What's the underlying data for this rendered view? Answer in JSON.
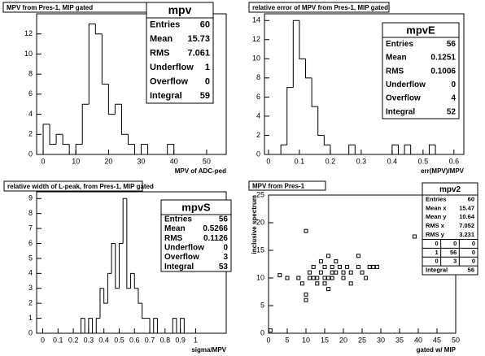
{
  "chart_data": [
    {
      "type": "histogram",
      "title": "MPV from Pres-1, MIP gated",
      "x_label": "MPV of ADC-ped",
      "bins": [
        0,
        2,
        4,
        6,
        8,
        10,
        12,
        14,
        16,
        18,
        20,
        22,
        24,
        26,
        28,
        30,
        32,
        34,
        36,
        38,
        40
      ],
      "values": [
        3,
        1,
        2,
        1,
        0,
        1,
        5,
        13,
        12,
        7,
        4,
        5,
        2,
        1,
        0,
        1,
        0,
        0,
        0,
        1
      ],
      "xlim": [
        -2,
        56
      ],
      "ylim": [
        0,
        14
      ],
      "xticks": [
        0,
        10,
        20,
        30,
        40,
        50
      ],
      "yticks": [
        0,
        2,
        4,
        6,
        8,
        10,
        12
      ],
      "color": "#000000",
      "stats": {
        "title": "mpv",
        "rows": [
          [
            "Entries",
            "60"
          ],
          [
            "Mean",
            "15.73"
          ],
          [
            "RMS",
            "7.061"
          ],
          [
            "Underflow",
            "1"
          ],
          [
            "Overflow",
            "0"
          ],
          [
            "Integral",
            "59"
          ]
        ]
      }
    },
    {
      "type": "histogram",
      "title": "relative error of MPV from Pres-1, MIP gated",
      "x_label": "err(MPV)/MPV",
      "bins": [
        0,
        0.02,
        0.04,
        0.06,
        0.08,
        0.1,
        0.12,
        0.14,
        0.16,
        0.18,
        0.2,
        0.22,
        0.24,
        0.26,
        0.28,
        0.3,
        0.32,
        0.34,
        0.36,
        0.38,
        0.4,
        0.42,
        0.44,
        0.46,
        0.48,
        0.5,
        0.52,
        0.54,
        0.56,
        0.58,
        0.6
      ],
      "values": [
        0,
        0,
        1,
        7,
        14,
        10,
        8,
        5,
        2,
        1,
        0,
        0,
        0,
        1,
        0,
        0,
        0,
        0,
        0,
        0,
        1,
        0,
        1,
        0,
        0,
        0,
        1,
        0,
        0,
        0
      ],
      "xlim": [
        -0.013,
        0.632
      ],
      "ylim": [
        0,
        14.7
      ],
      "xticks": [
        0,
        0.1,
        0.2,
        0.3,
        0.4,
        0.5,
        0.6
      ],
      "yticks": [
        0,
        2,
        4,
        6,
        8,
        10,
        12,
        14
      ],
      "color": "#000000",
      "stats": {
        "title": "mpvE",
        "rows": [
          [
            "Entries",
            "56"
          ],
          [
            "Mean",
            "0.1251"
          ],
          [
            "RMS",
            "0.1006"
          ],
          [
            "Underflow",
            "0"
          ],
          [
            "Overflow",
            "4"
          ],
          [
            "Integral",
            "52"
          ]
        ]
      }
    },
    {
      "type": "histogram",
      "title": "relative width of L-peak, from Pres-1, MIP gated",
      "x_label": "sigma/MPV",
      "bins": [
        0.25,
        0.275,
        0.3,
        0.325,
        0.35,
        0.375,
        0.4,
        0.425,
        0.45,
        0.475,
        0.5,
        0.525,
        0.55,
        0.575,
        0.6,
        0.625,
        0.65,
        0.675,
        0.7,
        0.725,
        0.75,
        0.775,
        0.8,
        0.825,
        0.85,
        0.875,
        0.9,
        0.925
      ],
      "values": [
        1,
        0,
        1,
        0,
        1,
        3,
        2,
        4,
        6,
        3,
        6,
        9,
        3,
        4,
        3,
        2,
        1,
        1,
        0,
        1,
        0,
        0,
        0,
        0,
        1,
        0,
        1
      ],
      "xlim": [
        -0.04,
        1.2
      ],
      "ylim": [
        0,
        9.45
      ],
      "xticks": [
        0,
        0.1,
        0.2,
        0.3,
        0.4,
        0.5,
        0.6,
        0.7,
        0.8,
        0.9,
        1
      ],
      "yticks": [
        0,
        1,
        2,
        3,
        4,
        5,
        6,
        7,
        8,
        9
      ],
      "color": "#000000",
      "stats": {
        "title": "mpvS",
        "rows": [
          [
            "Entries",
            "56"
          ],
          [
            "Mean",
            "0.5266"
          ],
          [
            "RMS",
            "0.1126"
          ],
          [
            "Underflow",
            "0"
          ],
          [
            "Overflow",
            "3"
          ],
          [
            "Integral",
            "53"
          ]
        ]
      }
    },
    {
      "type": "scatter",
      "title": "MPV from Pres-1",
      "x_label": "gated w/ MIP",
      "y_label": "inclusive spectrum",
      "x": [
        0.5,
        3,
        5,
        8,
        9,
        10,
        10,
        11,
        11,
        12,
        12,
        13,
        13,
        14,
        14,
        15,
        15,
        15,
        16,
        16,
        16,
        17,
        17,
        17,
        18,
        18,
        19,
        20,
        20,
        21,
        22,
        22,
        24,
        24,
        25,
        26,
        27,
        28,
        29,
        39,
        10
      ],
      "y": [
        0.5,
        10.5,
        10,
        10,
        9,
        18.5,
        7,
        10,
        11,
        12,
        10,
        9,
        10,
        11,
        13,
        12,
        10,
        9,
        14,
        10,
        8,
        10,
        12,
        11,
        13,
        11,
        12,
        11,
        10,
        12,
        11,
        9,
        14,
        12,
        11,
        10,
        12,
        12,
        12,
        17.5,
        6
      ],
      "xlim": [
        0,
        50
      ],
      "ylim": [
        0,
        25
      ],
      "xticks": [
        0,
        5,
        10,
        15,
        20,
        25,
        30,
        35,
        40,
        45,
        50
      ],
      "yticks": [
        0,
        5,
        10,
        15,
        20,
        25
      ],
      "color": "#000000",
      "stats": {
        "title": "mpv2",
        "rows": [
          [
            "Entries",
            "60"
          ],
          [
            "Mean x",
            "15.47"
          ],
          [
            "Mean y",
            "10.64"
          ],
          [
            "RMS x",
            "7.052"
          ],
          [
            "RMS y",
            "3.231"
          ]
        ],
        "grid": [
          [
            "0",
            "0",
            "0"
          ],
          [
            "1",
            "56",
            "0"
          ],
          [
            "0",
            "3",
            "0"
          ]
        ],
        "footer": [
          [
            "Integral",
            "56"
          ]
        ]
      }
    }
  ]
}
